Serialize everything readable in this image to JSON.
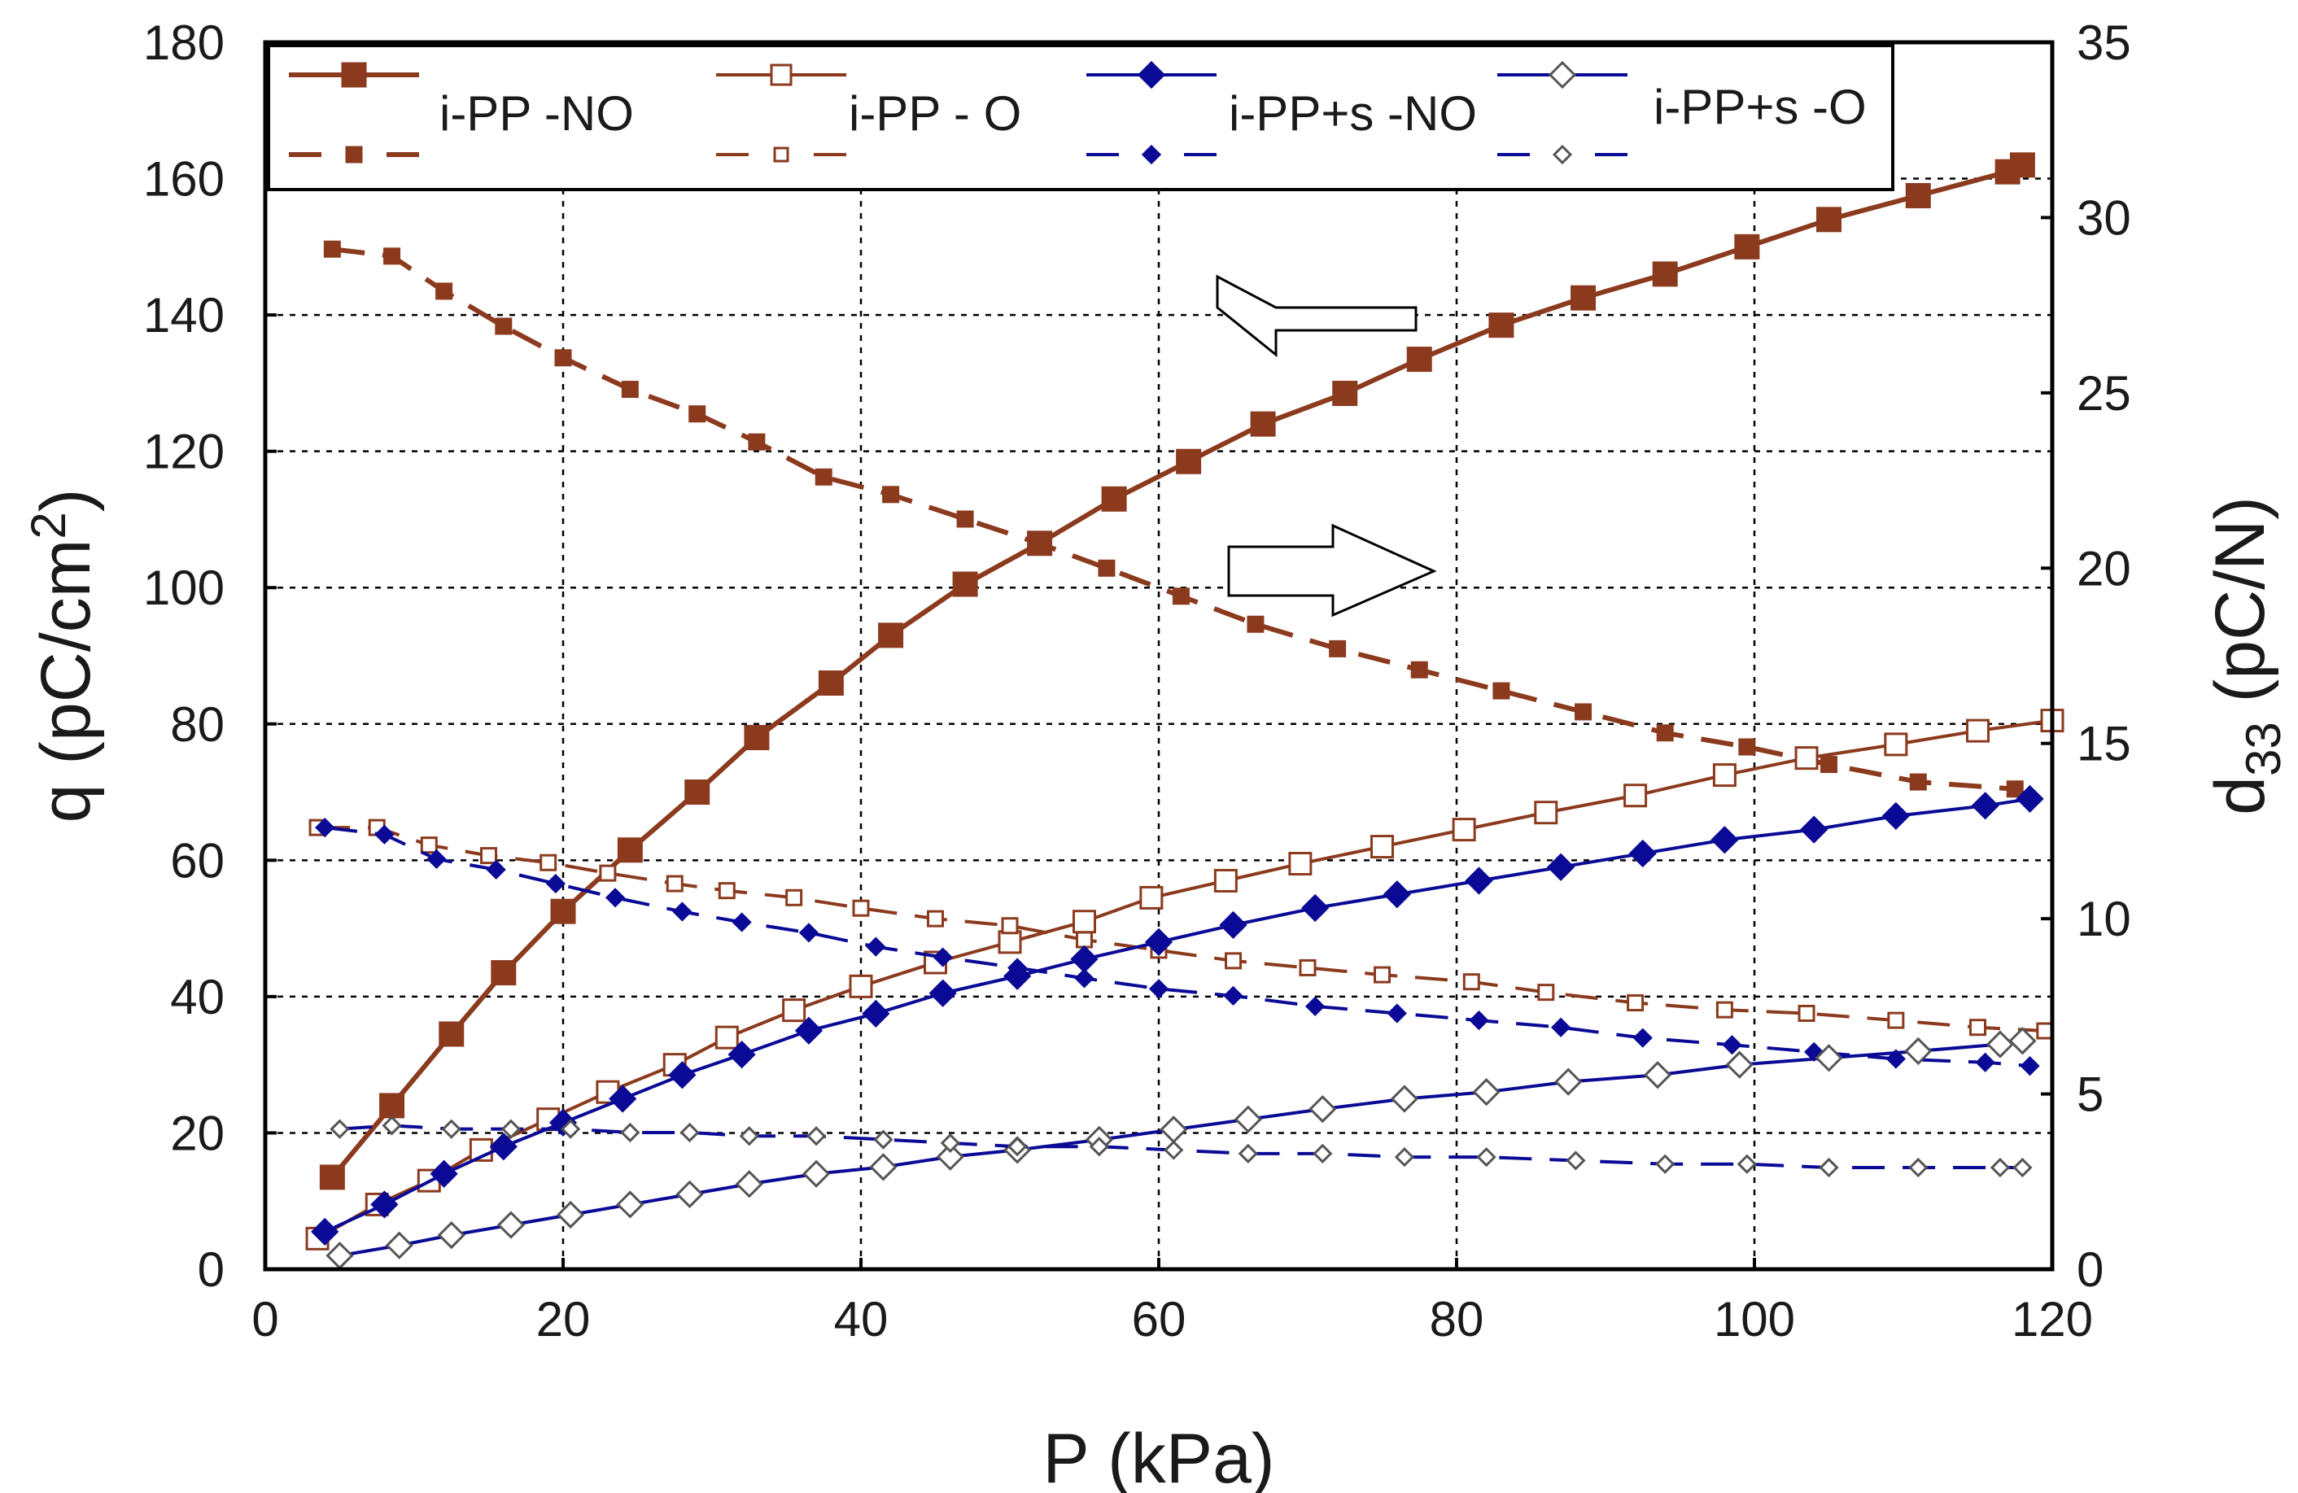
{
  "chart_data": {
    "type": "line",
    "title": "",
    "xlabel": "P (kPa)",
    "ylabel": "q (pC/cm2)",
    "ylabel_base": "q (pC/cm",
    "ylabel_sup": "2",
    "ylabel_end": ")",
    "y2label": "d33 (pC/N)",
    "y2label_base": "d",
    "y2label_sub": "33",
    "y2label_end": " (pC/N)",
    "xlim": [
      0,
      120
    ],
    "ylim": [
      0,
      180
    ],
    "y2lim": [
      0,
      35
    ],
    "xticks": [
      "0",
      "20",
      "40",
      "60",
      "80",
      "100",
      "120"
    ],
    "yticks": [
      "0",
      "20",
      "40",
      "60",
      "80",
      "100",
      "120",
      "140",
      "160",
      "180"
    ],
    "y2ticks": [
      "0",
      "5",
      "10",
      "15",
      "20",
      "25",
      "30",
      "35"
    ],
    "grid": true,
    "legend_position": "top",
    "annotations": [
      {
        "type": "arrow",
        "direction": "left",
        "meaning": "solid lines refer to left axis q"
      },
      {
        "type": "arrow",
        "direction": "right",
        "meaning": "dashed lines refer to right axis d33"
      }
    ],
    "series": [
      {
        "name": "i-PP - NO",
        "legend_label": "i-PP -NO",
        "color": "#8B3A1E",
        "marker": "square-filled",
        "q_values": [
          [
            4.5,
            13.5
          ],
          [
            8.5,
            24
          ],
          [
            12.5,
            34.5
          ],
          [
            16,
            43.5
          ],
          [
            20,
            52.5
          ],
          [
            24.5,
            61.5
          ],
          [
            29,
            70
          ],
          [
            33,
            78
          ],
          [
            38,
            86
          ],
          [
            42,
            93
          ],
          [
            47,
            100.5
          ],
          [
            52,
            106.5
          ],
          [
            57,
            113
          ],
          [
            62,
            118.5
          ],
          [
            67,
            124
          ],
          [
            72.5,
            128.5
          ],
          [
            77.5,
            133.5
          ],
          [
            83,
            138.5
          ],
          [
            88.5,
            142.5
          ],
          [
            94,
            146
          ],
          [
            99.5,
            150
          ],
          [
            105,
            154
          ],
          [
            111,
            157.5
          ],
          [
            117,
            161
          ],
          [
            118,
            162
          ]
        ],
        "d33_values": [
          [
            4.5,
            29.1
          ],
          [
            8.5,
            28.9
          ],
          [
            12,
            27.9
          ],
          [
            16,
            26.9
          ],
          [
            20,
            26
          ],
          [
            24.5,
            25.1
          ],
          [
            29,
            24.4
          ],
          [
            33,
            23.6
          ],
          [
            37.5,
            22.6
          ],
          [
            42,
            22.1
          ],
          [
            47,
            21.4
          ],
          [
            52,
            20.7
          ],
          [
            56.5,
            20
          ],
          [
            61.5,
            19.2
          ],
          [
            66.5,
            18.4
          ],
          [
            72,
            17.7
          ],
          [
            77.5,
            17.1
          ],
          [
            83,
            16.5
          ],
          [
            88.5,
            15.9
          ],
          [
            94,
            15.3
          ],
          [
            99.5,
            14.9
          ],
          [
            105,
            14.4
          ],
          [
            111,
            13.9
          ],
          [
            117.5,
            13.7
          ]
        ]
      },
      {
        "name": "i-PP - O",
        "legend_label": "i-PP - O",
        "color": "#8B3A1E",
        "marker": "square-open",
        "q_values": [
          [
            3.5,
            4.5
          ],
          [
            7.5,
            9.5
          ],
          [
            11,
            13
          ],
          [
            14.5,
            17.5
          ],
          [
            19,
            22
          ],
          [
            23,
            26
          ],
          [
            27.5,
            30
          ],
          [
            31,
            34
          ],
          [
            35.5,
            38
          ],
          [
            40,
            41.5
          ],
          [
            45,
            45
          ],
          [
            50,
            48
          ],
          [
            55,
            51
          ],
          [
            59.5,
            54.5
          ],
          [
            64.5,
            57
          ],
          [
            69.5,
            59.5
          ],
          [
            75,
            62
          ],
          [
            80.5,
            64.5
          ],
          [
            86,
            67
          ],
          [
            92,
            69.5
          ],
          [
            98,
            72.5
          ],
          [
            103.5,
            75
          ],
          [
            109.5,
            77
          ],
          [
            115,
            79
          ],
          [
            120,
            80.5
          ]
        ],
        "d33_values": [
          [
            3.5,
            12.6
          ],
          [
            7.5,
            12.6
          ],
          [
            11,
            12.1
          ],
          [
            15,
            11.8
          ],
          [
            19,
            11.6
          ],
          [
            23,
            11.3
          ],
          [
            27.5,
            11
          ],
          [
            31,
            10.8
          ],
          [
            35.5,
            10.6
          ],
          [
            40,
            10.3
          ],
          [
            45,
            10
          ],
          [
            50,
            9.8
          ],
          [
            55,
            9.4
          ],
          [
            60,
            9.1
          ],
          [
            65,
            8.8
          ],
          [
            70,
            8.6
          ],
          [
            75,
            8.4
          ],
          [
            81,
            8.2
          ],
          [
            86,
            7.9
          ],
          [
            92,
            7.6
          ],
          [
            98,
            7.4
          ],
          [
            103.5,
            7.3
          ],
          [
            109.5,
            7.1
          ],
          [
            115,
            6.9
          ],
          [
            119.5,
            6.8
          ]
        ]
      },
      {
        "name": "i-PP+s - NO",
        "legend_label": "i-PP+s -NO",
        "color": "#0A0A96",
        "marker": "diamond-filled",
        "q_values": [
          [
            4,
            5.5
          ],
          [
            8,
            9.5
          ],
          [
            12,
            14
          ],
          [
            16,
            18
          ],
          [
            20,
            21.5
          ],
          [
            24,
            25
          ],
          [
            28,
            28.5
          ],
          [
            32,
            31.5
          ],
          [
            36.5,
            35
          ],
          [
            41,
            37.5
          ],
          [
            45.5,
            40.5
          ],
          [
            50.5,
            43
          ],
          [
            55,
            45.5
          ],
          [
            60,
            48
          ],
          [
            65,
            50.5
          ],
          [
            70.5,
            53
          ],
          [
            76,
            55
          ],
          [
            81.5,
            57
          ],
          [
            87,
            59
          ],
          [
            92.5,
            61
          ],
          [
            98,
            63
          ],
          [
            104,
            64.5
          ],
          [
            109.5,
            66.5
          ],
          [
            115.5,
            68
          ],
          [
            118.5,
            69
          ]
        ],
        "d33_values": [
          [
            4,
            12.6
          ],
          [
            8,
            12.4
          ],
          [
            11.5,
            11.7
          ],
          [
            15.5,
            11.4
          ],
          [
            19.5,
            11
          ],
          [
            23.5,
            10.6
          ],
          [
            28,
            10.2
          ],
          [
            32,
            9.9
          ],
          [
            36.5,
            9.6
          ],
          [
            41,
            9.2
          ],
          [
            45.5,
            8.9
          ],
          [
            50.5,
            8.6
          ],
          [
            55,
            8.3
          ],
          [
            60,
            8
          ],
          [
            65,
            7.8
          ],
          [
            70.5,
            7.5
          ],
          [
            76,
            7.3
          ],
          [
            81.5,
            7.1
          ],
          [
            87,
            6.9
          ],
          [
            92.5,
            6.6
          ],
          [
            98.5,
            6.4
          ],
          [
            104,
            6.2
          ],
          [
            109.5,
            6
          ],
          [
            115.5,
            5.9
          ],
          [
            118.5,
            5.8
          ]
        ]
      },
      {
        "name": "i-PP+s - O",
        "legend_label": "i-PP+s -O",
        "color": "#0A0A96",
        "marker": "diamond-open",
        "q_values": [
          [
            5,
            2
          ],
          [
            9,
            3.5
          ],
          [
            12.5,
            5
          ],
          [
            16.5,
            6.5
          ],
          [
            20.5,
            8
          ],
          [
            24.5,
            9.5
          ],
          [
            28.5,
            11
          ],
          [
            32.5,
            12.5
          ],
          [
            37,
            14
          ],
          [
            41.5,
            15
          ],
          [
            46,
            16.5
          ],
          [
            50.5,
            17.5
          ],
          [
            56,
            19
          ],
          [
            61,
            20.5
          ],
          [
            66,
            22
          ],
          [
            71,
            23.5
          ],
          [
            76.5,
            25
          ],
          [
            82,
            26
          ],
          [
            87.5,
            27.5
          ],
          [
            93.5,
            28.5
          ],
          [
            99,
            30
          ],
          [
            105,
            31
          ],
          [
            111,
            32
          ],
          [
            116.5,
            33
          ],
          [
            118,
            33.5
          ]
        ],
        "d33_values": [
          [
            5,
            4
          ],
          [
            8.5,
            4.1
          ],
          [
            12.5,
            4
          ],
          [
            16.5,
            4
          ],
          [
            20.5,
            4
          ],
          [
            24.5,
            3.9
          ],
          [
            28.5,
            3.9
          ],
          [
            32.5,
            3.8
          ],
          [
            37,
            3.8
          ],
          [
            41.5,
            3.7
          ],
          [
            46,
            3.6
          ],
          [
            50.5,
            3.5
          ],
          [
            56,
            3.5
          ],
          [
            61,
            3.4
          ],
          [
            66,
            3.3
          ],
          [
            71,
            3.3
          ],
          [
            76.5,
            3.2
          ],
          [
            82,
            3.2
          ],
          [
            88,
            3.1
          ],
          [
            94,
            3
          ],
          [
            99.5,
            3
          ],
          [
            105,
            2.9
          ],
          [
            111,
            2.9
          ],
          [
            116.5,
            2.9
          ],
          [
            118,
            2.9
          ]
        ]
      }
    ]
  }
}
